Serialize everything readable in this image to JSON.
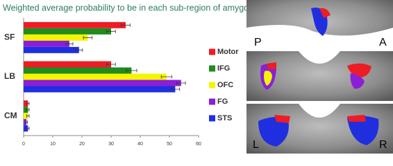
{
  "chart_data": {
    "type": "hbar",
    "title": "Weighted average probability to be in each sub-region of amygdala",
    "categories": [
      "SF",
      "LB",
      "CM"
    ],
    "series": [
      {
        "name": "Motor",
        "color": "#ee1c24",
        "values": [
          35,
          30,
          1.5
        ],
        "errors": [
          1.5,
          1.5,
          0.4
        ]
      },
      {
        "name": "IFG",
        "color": "#1e8c1e",
        "values": [
          30,
          37,
          1.5
        ],
        "errors": [
          1.5,
          1.8,
          0.4
        ]
      },
      {
        "name": "OFC",
        "color": "#f5f500",
        "values": [
          22,
          49,
          1.5
        ],
        "errors": [
          1.5,
          1.8,
          0.4
        ]
      },
      {
        "name": "FG",
        "color": "#8b1fd6",
        "values": [
          15.7,
          54,
          1
        ],
        "errors": [
          1.2,
          1.5,
          0.3
        ]
      },
      {
        "name": "STS",
        "color": "#1f2fe0",
        "values": [
          19,
          52,
          1.5
        ],
        "errors": [
          1.2,
          1.5,
          0.4
        ]
      }
    ],
    "xlim": [
      0,
      60
    ],
    "xticks": [
      0,
      10,
      20,
      30,
      40,
      50,
      60
    ]
  },
  "brain_panels": [
    {
      "labels": [
        "P",
        "A"
      ]
    },
    {
      "labels": []
    },
    {
      "labels": [
        "L",
        "R"
      ]
    }
  ]
}
